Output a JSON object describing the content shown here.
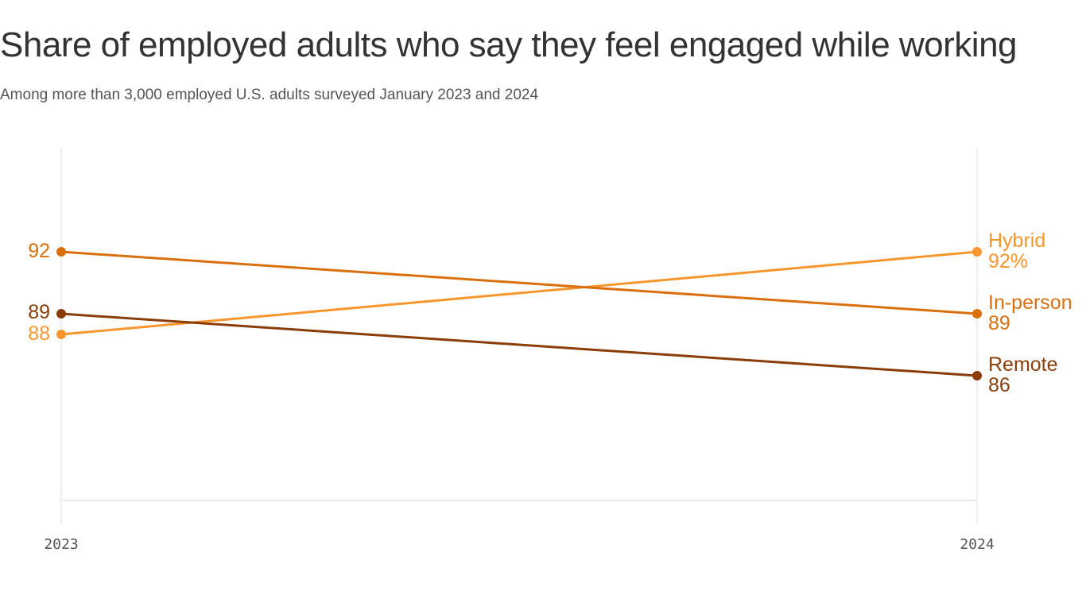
{
  "chart_data": {
    "type": "line",
    "title": "Share of employed adults who say they feel engaged while working",
    "subtitle": "Among more than 3,000 employed U.S. adults surveyed January 2023 and 2024",
    "x": [
      "2023",
      "2024"
    ],
    "xlabel": "",
    "ylabel": "",
    "ylim": [
      80,
      95
    ],
    "grid": false,
    "legend": "none",
    "series": [
      {
        "name": "Hybrid",
        "values": [
          88,
          92
        ],
        "start_label": "88",
        "end_label": "92%",
        "color": "#f7962e"
      },
      {
        "name": "In-person",
        "values": [
          92,
          89
        ],
        "start_label": "92",
        "end_label": "89",
        "color": "#d96f0e"
      },
      {
        "name": "Remote",
        "values": [
          89,
          86
        ],
        "start_label": "89",
        "end_label": "86",
        "color": "#8a3d08"
      }
    ]
  }
}
